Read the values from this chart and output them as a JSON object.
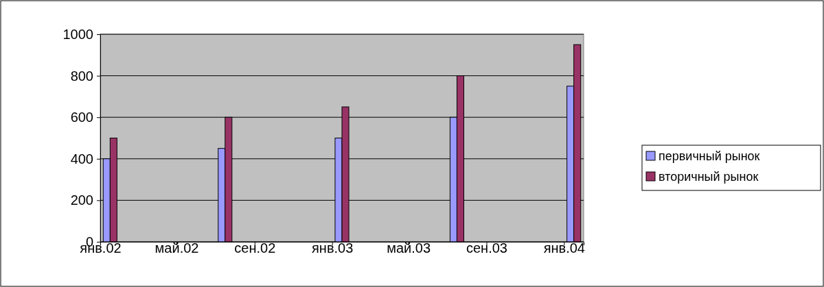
{
  "chart_data": {
    "type": "bar",
    "x": [
      "2002-01",
      "2002-07",
      "2003-01",
      "2003-07",
      "2004-01"
    ],
    "series": [
      {
        "name": "первичный рынок",
        "color": "#9999ff",
        "values": [
          400,
          450,
          500,
          600,
          750
        ]
      },
      {
        "name": "вторичный рынок",
        "color": "#993366",
        "values": [
          500,
          600,
          650,
          800,
          950
        ]
      }
    ],
    "xlim": [
      "2002-01",
      "2004-02"
    ],
    "xticks": [
      {
        "value": "2002-01",
        "label": "янв.02"
      },
      {
        "value": "2002-05",
        "label": "май.02"
      },
      {
        "value": "2002-09",
        "label": "сен.02"
      },
      {
        "value": "2003-01",
        "label": "янв.03"
      },
      {
        "value": "2003-05",
        "label": "май.03"
      },
      {
        "value": "2003-09",
        "label": "сен.03"
      },
      {
        "value": "2004-01",
        "label": "янв.04"
      }
    ],
    "ylim": [
      0,
      1000
    ],
    "yticks": [
      0,
      200,
      400,
      600,
      800,
      1000
    ],
    "grid": "y",
    "legend": "right"
  }
}
